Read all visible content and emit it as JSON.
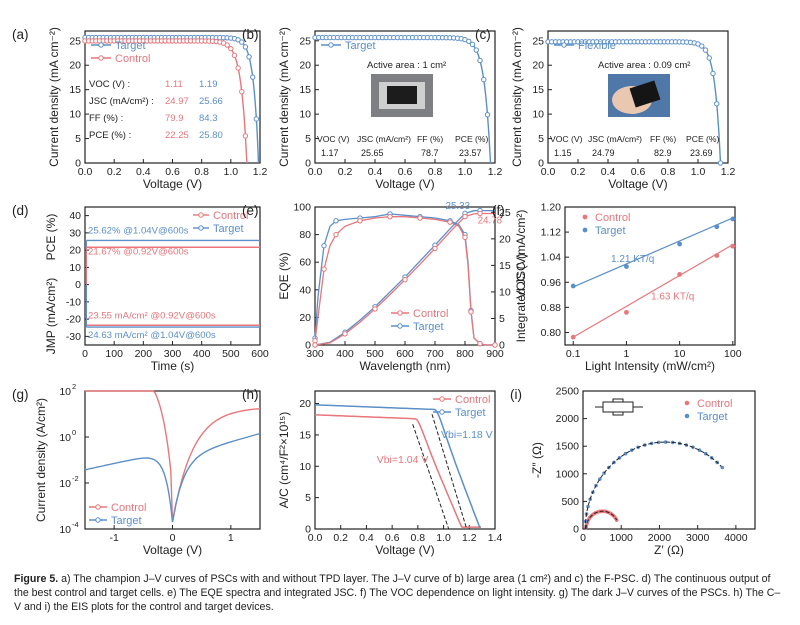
{
  "colors": {
    "control": "#e8767a",
    "target": "#5b8fc9",
    "axis": "#222222",
    "fit_dash": "#222222"
  },
  "chart_data": [
    {
      "id": "a",
      "type": "line",
      "panel_label": "(a)",
      "xlabel": "Voltage (V)",
      "ylabel": "Current density (mA cm⁻²)",
      "xlim": [
        0,
        1.2
      ],
      "ylim": [
        0,
        27
      ],
      "xticks": [
        "0.0",
        "0.2",
        "0.4",
        "0.6",
        "0.8",
        "1.0",
        "1.2"
      ],
      "xtick_vals": [
        0,
        0.2,
        0.4,
        0.6,
        0.8,
        1.0,
        1.2
      ],
      "yticks": [
        "0",
        "5",
        "10",
        "15",
        "20",
        "25"
      ],
      "ytick_vals": [
        0,
        5,
        10,
        15,
        20,
        25
      ],
      "legend": [
        "Target",
        "Control"
      ],
      "table": {
        "rows": [
          {
            "label": "VOC (V) :",
            "control": "1.11",
            "target": "1.19"
          },
          {
            "label": "JSC (mA/cm²) :",
            "control": "24.97",
            "target": "25.66"
          },
          {
            "label": "FF (%) :",
            "control": "79.9",
            "target": "84.3"
          },
          {
            "label": "PCE (%) :",
            "control": "22.25",
            "target": "25.80"
          }
        ]
      },
      "series": [
        {
          "name": "Target",
          "color": "target",
          "jv": {
            "jsc": 25.66,
            "voc": 1.19,
            "n": 1.35
          }
        },
        {
          "name": "Control",
          "color": "control",
          "jv": {
            "jsc": 24.97,
            "voc": 1.11,
            "n": 1.55
          }
        }
      ]
    },
    {
      "id": "b",
      "type": "line",
      "panel_label": "(b)",
      "xlabel": "Voltage (V)",
      "ylabel": "Current density (mA cm⁻²)",
      "xlim": [
        0,
        1.2
      ],
      "ylim": [
        0,
        27
      ],
      "xticks": [
        "0.0",
        "0.2",
        "0.4",
        "0.6",
        "0.8",
        "1.0",
        "1.2"
      ],
      "xtick_vals": [
        0,
        0.2,
        0.4,
        0.6,
        0.8,
        1.0,
        1.2
      ],
      "yticks": [
        "0",
        "5",
        "10",
        "15",
        "20",
        "25"
      ],
      "ytick_vals": [
        0,
        5,
        10,
        15,
        20,
        25
      ],
      "legend": [
        "Target"
      ],
      "annotation": "Active area : 1 cm²",
      "params_header": [
        "VOC (V)",
        "JSC (mA/cm²)",
        "FF (%)",
        "PCE (%)"
      ],
      "params_values": [
        "1.17",
        "25.65",
        "78.7",
        "23.57"
      ],
      "series": [
        {
          "name": "Target",
          "color": "target",
          "jv": {
            "jsc": 25.65,
            "voc": 1.17,
            "n": 1.6
          }
        }
      ]
    },
    {
      "id": "c",
      "type": "line",
      "panel_label": "(c)",
      "xlabel": "Voltage (V)",
      "ylabel": "Current density (mA cm⁻²)",
      "xlim": [
        0,
        1.2
      ],
      "ylim": [
        0,
        27
      ],
      "xticks": [
        "0.0",
        "0.2",
        "0.4",
        "0.6",
        "0.8",
        "1.0",
        "1.2"
      ],
      "xtick_vals": [
        0,
        0.2,
        0.4,
        0.6,
        0.8,
        1.0,
        1.2
      ],
      "yticks": [
        "0",
        "5",
        "10",
        "15",
        "20",
        "25"
      ],
      "ytick_vals": [
        0,
        5,
        10,
        15,
        20,
        25
      ],
      "legend": [
        "Flexible"
      ],
      "annotation": "Active area : 0.09 cm²",
      "params_header": [
        "VOC (V)",
        "JSC (mA/cm²)",
        "FF (%)",
        "PCE (%)"
      ],
      "params_values": [
        "1.15",
        "24.79",
        "82.9",
        "23.69"
      ],
      "series": [
        {
          "name": "Flexible",
          "color": "target",
          "jv": {
            "jsc": 24.79,
            "voc": 1.15,
            "n": 1.45
          }
        }
      ]
    },
    {
      "id": "d",
      "type": "line",
      "panel_label": "(d)",
      "xlabel": "Time (s)",
      "ylabel_top": "PCE (%)",
      "ylabel_bottom": "JMP (mA/cm²)",
      "xlim": [
        0,
        600
      ],
      "ylim": [
        -35,
        45
      ],
      "xticks": [
        "0",
        "100",
        "200",
        "300",
        "400",
        "500",
        "600"
      ],
      "xtick_vals": [
        0,
        100,
        200,
        300,
        400,
        500,
        600
      ],
      "yticks": [
        "-30",
        "-20",
        "-10",
        "0",
        "10",
        "20",
        "30",
        "40"
      ],
      "ytick_vals": [
        -30,
        -20,
        -10,
        0,
        10,
        20,
        30,
        40
      ],
      "legend": [
        "Control",
        "Target"
      ],
      "annotations": [
        "25.62% @1.04V@600s",
        "21.67% @0.92V@600s",
        "23.55 mA/cm² @0.92V@600s",
        "24.63 mA/cm² @1.04V@600s"
      ],
      "series": [
        {
          "name": "Target PCE",
          "color": "target",
          "value": 25.62
        },
        {
          "name": "Control PCE",
          "color": "control",
          "value": 21.67
        },
        {
          "name": "Control JMP",
          "color": "control",
          "value": -23.55
        },
        {
          "name": "Target JMP",
          "color": "target",
          "value": -24.63
        }
      ]
    },
    {
      "id": "e",
      "type": "line",
      "panel_label": "(e)",
      "xlabel": "Wavelength (nm)",
      "ylabel": "EQE (%)",
      "ylabel_right": "Integrated JSC (mA/cm²)",
      "xlim": [
        300,
        900
      ],
      "ylim": [
        0,
        100
      ],
      "ylim_right": [
        0,
        26
      ],
      "xticks": [
        "300",
        "400",
        "500",
        "600",
        "700",
        "800",
        "900"
      ],
      "xtick_vals": [
        300,
        400,
        500,
        600,
        700,
        800,
        900
      ],
      "yticks": [
        "0",
        "20",
        "40",
        "60",
        "80",
        "100"
      ],
      "ytick_vals": [
        0,
        20,
        40,
        60,
        80,
        100
      ],
      "yticks_right": [
        "0",
        "5",
        "10",
        "15",
        "20",
        "25"
      ],
      "ytick_vals_right": [
        0,
        5,
        10,
        15,
        20,
        25
      ],
      "legend": [
        "Control",
        "Target"
      ],
      "annotations": [
        "25.33",
        "24.78"
      ],
      "series": [
        {
          "name": "Target EQE",
          "color": "target",
          "x": [
            300,
            310,
            330,
            350,
            370,
            400,
            450,
            500,
            550,
            600,
            650,
            700,
            750,
            780,
            800,
            810,
            820,
            830,
            850,
            870,
            900
          ],
          "y": [
            5,
            35,
            72,
            86,
            90,
            91,
            92,
            93,
            95,
            94,
            93,
            92,
            90,
            87,
            80,
            60,
            25,
            5,
            1,
            0,
            0
          ]
        },
        {
          "name": "Control EQE",
          "color": "control",
          "x": [
            300,
            310,
            330,
            350,
            370,
            400,
            450,
            500,
            550,
            600,
            650,
            700,
            750,
            780,
            800,
            810,
            820,
            830,
            850,
            870,
            900
          ],
          "y": [
            3,
            20,
            55,
            72,
            80,
            86,
            90,
            92,
            93,
            93,
            92,
            91,
            89,
            86,
            78,
            58,
            24,
            5,
            1,
            0,
            0
          ]
        },
        {
          "name": "Target Jsc",
          "color": "target",
          "axis": "right",
          "x": [
            300,
            350,
            400,
            450,
            500,
            550,
            600,
            650,
            700,
            750,
            800,
            830,
            850,
            900
          ],
          "y": [
            0,
            0.5,
            2.4,
            4.7,
            7.2,
            10.0,
            12.8,
            15.8,
            18.8,
            21.9,
            24.8,
            25.3,
            25.33,
            25.33
          ]
        },
        {
          "name": "Control Jsc",
          "color": "control",
          "axis": "right",
          "x": [
            300,
            350,
            400,
            450,
            500,
            550,
            600,
            650,
            700,
            750,
            800,
            830,
            850,
            900
          ],
          "y": [
            0,
            0.4,
            2.1,
            4.3,
            6.8,
            9.5,
            12.3,
            15.2,
            18.2,
            21.3,
            24.2,
            24.7,
            24.78,
            24.78
          ]
        }
      ]
    },
    {
      "id": "f",
      "type": "scatter",
      "panel_label": "(f)",
      "xlabel": "Light Intensity (mW/cm²)",
      "ylabel": "VOC (V)",
      "xscale": "log",
      "xlim": [
        0.07,
        110
      ],
      "ylim": [
        0.76,
        1.2
      ],
      "xticks": [
        "0.1",
        "1",
        "10",
        "100"
      ],
      "xtick_vals": [
        0.1,
        1,
        10,
        100
      ],
      "yticks": [
        "0.80",
        "0.88",
        "0.96",
        "1.04",
        "1.12",
        "1.20"
      ],
      "ytick_vals": [
        0.8,
        0.88,
        0.96,
        1.04,
        1.12,
        1.2
      ],
      "legend": [
        "Control",
        "Target"
      ],
      "annotations": [
        "1.21 KT/q",
        "1.63 KT/q"
      ],
      "series": [
        {
          "name": "Control",
          "color": "control",
          "x": [
            0.1,
            1,
            10,
            50,
            100
          ],
          "y": [
            0.785,
            0.864,
            0.985,
            1.045,
            1.075
          ],
          "fit": [
            0.785,
            1.08
          ]
        },
        {
          "name": "Target",
          "color": "target",
          "x": [
            0.1,
            1,
            10,
            50,
            100
          ],
          "y": [
            0.948,
            1.01,
            1.082,
            1.137,
            1.162
          ],
          "fit": [
            0.945,
            1.165
          ]
        }
      ]
    },
    {
      "id": "g",
      "type": "line",
      "panel_label": "(g)",
      "xlabel": "Voltage (V)",
      "ylabel": "Current density (A/cm²)",
      "yscale": "log",
      "xlim": [
        -1.5,
        1.5
      ],
      "ylim_exp": [
        -4,
        2
      ],
      "xticks": [
        "-1",
        "0",
        "1"
      ],
      "xtick_vals": [
        -1,
        0,
        1
      ],
      "yticks_base": [
        "10",
        "10",
        "10",
        "10"
      ],
      "yticks_exp": [
        "-4",
        "-2",
        "0",
        "2"
      ],
      "ytick_vals": [
        -4,
        -2,
        0,
        2
      ],
      "legend": [
        "Control",
        "Target"
      ],
      "series": [
        {
          "name": "Control",
          "color": "control",
          "dark": {
            "left": 1.45,
            "right": 1.3,
            "slope_l": 0.1,
            "slope_r": 0.25
          }
        },
        {
          "name": "Target",
          "color": "target",
          "dark": {
            "left": -0.6,
            "right": 0.15,
            "slope_l": 0.55,
            "slope_r": 0.7
          }
        }
      ]
    },
    {
      "id": "h",
      "type": "line",
      "panel_label": "(h)",
      "xlabel": "Voltage (V)",
      "ylabel": "A/C (cm⁴/F²×10¹⁵)",
      "xlim": [
        0,
        1.4
      ],
      "ylim": [
        0,
        22
      ],
      "xticks": [
        "0.0",
        "0.2",
        "0.4",
        "0.6",
        "0.8",
        "1.0",
        "1.2",
        "1.4"
      ],
      "xtick_vals": [
        0,
        0.2,
        0.4,
        0.6,
        0.8,
        1.0,
        1.2,
        1.4
      ],
      "yticks": [
        "0",
        "5",
        "10",
        "15",
        "20"
      ],
      "ytick_vals": [
        0,
        5,
        10,
        15,
        20
      ],
      "legend": [
        "Control",
        "Target"
      ],
      "annotations": [
        "Vbi=1.18 V",
        "Vbi=1.04 V"
      ],
      "series": [
        {
          "name": "Control",
          "color": "control",
          "mott": {
            "plateau": 18.2,
            "vbi": 1.04,
            "knee": 0.78
          }
        },
        {
          "name": "Target",
          "color": "target",
          "mott": {
            "plateau": 19.8,
            "vbi": 1.18,
            "knee": 0.93
          }
        }
      ]
    },
    {
      "id": "i",
      "type": "scatter",
      "panel_label": "(i)",
      "xlabel": "Z′ (Ω)",
      "ylabel": "-Z″ (Ω)",
      "xlim": [
        0,
        4500
      ],
      "ylim": [
        0,
        2500
      ],
      "xticks": [
        "0",
        "1000",
        "2000",
        "3000",
        "4000"
      ],
      "xtick_vals": [
        0,
        1000,
        2000,
        3000,
        4000
      ],
      "yticks": [
        "0",
        "500",
        "1000",
        "1500",
        "2000",
        "2500"
      ],
      "ytick_vals": [
        0,
        500,
        1000,
        1500,
        2000,
        2500
      ],
      "legend": [
        "Control",
        "Target"
      ],
      "series": [
        {
          "name": "Control",
          "color": "control",
          "arc": {
            "rs": 80,
            "rct": 860,
            "a_end": 150
          }
        },
        {
          "name": "Target",
          "color": "target",
          "arc": {
            "rs": 60,
            "rct": 4200,
            "a_end": 135
          }
        }
      ]
    }
  ],
  "caption": {
    "label": "Figure 5.",
    "text": "a) The champion J–V curves of PSCs with and without TPD layer. The J–V curve of b) large area (1 cm²) and c) the F-PSC. d) The continuous output of the best control and target cells. e) The EQE spectra and integrated JSC. f) The VOC dependence on light intensity. g) The dark J–V curves of the PSCs. h) The C–V and i) the EIS plots for the control and target devices."
  }
}
